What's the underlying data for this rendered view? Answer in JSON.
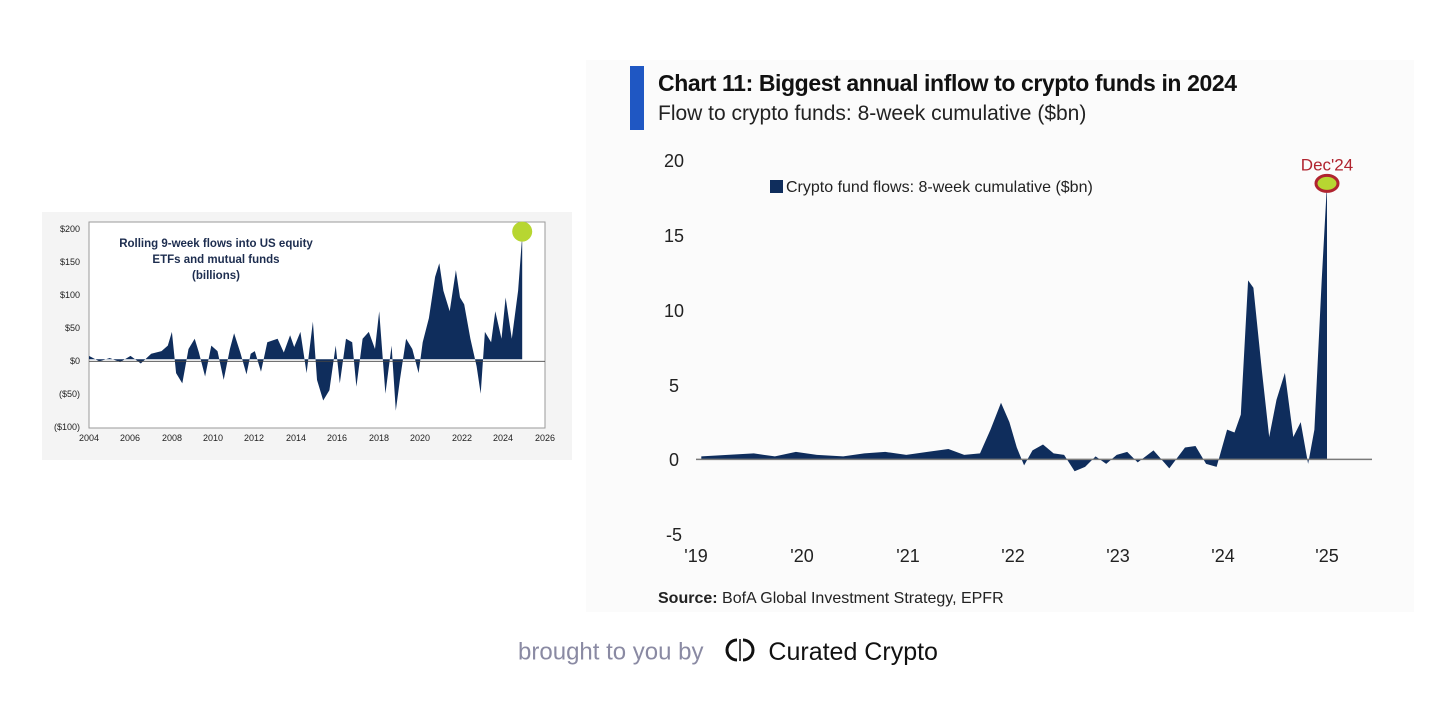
{
  "left_chart": {
    "title_lines": [
      "Rolling 9-week flows into US equity",
      "ETFs and mutual funds",
      "(billions)"
    ],
    "y_tick_labels": [
      "$200",
      "$150",
      "$100",
      "$50",
      "$0",
      "($50)",
      "($100)"
    ],
    "x_tick_labels": [
      "2004",
      "2006",
      "2008",
      "2010",
      "2012",
      "2014",
      "2016",
      "2018",
      "2020",
      "2022",
      "2024",
      "2026"
    ]
  },
  "right_chart": {
    "title": "Chart 11: Biggest annual inflow to crypto funds in 2024",
    "subtitle": "Flow to crypto funds: 8-week cumulative ($bn)",
    "legend_label": "Crypto fund flows: 8-week cumulative ($bn)",
    "annotation": "Dec'24",
    "y_tick_labels": [
      "20",
      "15",
      "10",
      "5",
      "0",
      "-5"
    ],
    "x_tick_labels": [
      "'19",
      "'20",
      "'21",
      "'22",
      "'23",
      "'24",
      "'25"
    ],
    "source_label": "Source:",
    "source_text": " BofA Global Investment Strategy, EPFR"
  },
  "footer": {
    "text": "brought to you by",
    "brand": "Curated Crypto"
  },
  "colors": {
    "bar_fill": "#0f2d5c",
    "accent": "#1f57c3",
    "highlight_green": "#b7d631",
    "annotation_red": "#b0242f",
    "axis_gray": "#6b6b6b"
  },
  "chart_data": [
    {
      "type": "area",
      "title": "Rolling 9-week flows into US equity ETFs and mutual funds (billions)",
      "xlim": [
        2004,
        2026
      ],
      "ylim": [
        -100,
        200
      ],
      "x": [
        2004.0,
        2004.5,
        2005.0,
        2005.5,
        2006.0,
        2006.5,
        2007.0,
        2007.5,
        2007.8,
        2008.0,
        2008.2,
        2008.5,
        2008.8,
        2009.1,
        2009.3,
        2009.6,
        2009.9,
        2010.2,
        2010.5,
        2010.8,
        2011.0,
        2011.3,
        2011.6,
        2011.8,
        2012.0,
        2012.3,
        2012.6,
        2012.9,
        2013.1,
        2013.4,
        2013.7,
        2013.9,
        2014.2,
        2014.5,
        2014.8,
        2015.0,
        2015.3,
        2015.6,
        2015.9,
        2016.1,
        2016.4,
        2016.7,
        2016.9,
        2017.2,
        2017.5,
        2017.8,
        2018.0,
        2018.3,
        2018.6,
        2018.8,
        2019.0,
        2019.3,
        2019.6,
        2019.9,
        2020.1,
        2020.4,
        2020.7,
        2020.9,
        2021.1,
        2021.4,
        2021.7,
        2021.9,
        2022.1,
        2022.4,
        2022.7,
        2022.9,
        2023.1,
        2023.4,
        2023.6,
        2023.9,
        2024.1,
        2024.4,
        2024.7,
        2024.9
      ],
      "values": [
        5,
        -3,
        2,
        -4,
        5,
        -6,
        8,
        12,
        20,
        40,
        -20,
        -35,
        15,
        30,
        10,
        -25,
        20,
        12,
        -30,
        15,
        38,
        10,
        -22,
        8,
        12,
        -18,
        25,
        28,
        30,
        10,
        35,
        18,
        40,
        -20,
        55,
        -30,
        -60,
        -45,
        20,
        -35,
        30,
        25,
        -40,
        30,
        40,
        15,
        70,
        -50,
        20,
        -75,
        -30,
        30,
        15,
        -20,
        25,
        60,
        120,
        140,
        100,
        70,
        130,
        90,
        80,
        30,
        -10,
        -50,
        40,
        25,
        70,
        30,
        90,
        30,
        100,
        180
      ]
    },
    {
      "type": "area",
      "title": "Chart 11: Biggest annual inflow to crypto funds in 2024",
      "subtitle": "Flow to crypto funds: 8-week cumulative ($bn)",
      "ylabel": "",
      "xlim": [
        2019.0,
        2025.4
      ],
      "ylim": [
        -5,
        20
      ],
      "series": [
        {
          "name": "Crypto fund flows: 8-week cumulative ($bn)",
          "x": [
            2019.05,
            2019.3,
            2019.55,
            2019.75,
            2019.95,
            2020.15,
            2020.4,
            2020.6,
            2020.8,
            2021.0,
            2021.2,
            2021.4,
            2021.55,
            2021.7,
            2021.8,
            2021.9,
            2021.98,
            2022.05,
            2022.12,
            2022.2,
            2022.3,
            2022.4,
            2022.5,
            2022.6,
            2022.7,
            2022.8,
            2022.9,
            2023.0,
            2023.1,
            2023.2,
            2023.35,
            2023.5,
            2023.65,
            2023.75,
            2023.85,
            2023.95,
            2024.05,
            2024.12,
            2024.18,
            2024.25,
            2024.3,
            2024.38,
            2024.45,
            2024.52,
            2024.6,
            2024.68,
            2024.75,
            2024.82,
            2024.88,
            2024.95,
            2025.0
          ],
          "values": [
            0.2,
            0.3,
            0.4,
            0.2,
            0.5,
            0.3,
            0.2,
            0.4,
            0.5,
            0.3,
            0.5,
            0.7,
            0.3,
            0.4,
            2.0,
            3.8,
            2.5,
            0.8,
            -0.4,
            0.6,
            1.0,
            0.4,
            0.3,
            -0.8,
            -0.5,
            0.2,
            -0.3,
            0.3,
            0.5,
            -0.2,
            0.6,
            -0.6,
            0.8,
            0.9,
            -0.3,
            -0.5,
            2.0,
            1.8,
            3.0,
            12.0,
            11.5,
            6.0,
            1.5,
            4.0,
            5.8,
            1.5,
            2.5,
            -0.3,
            2.0,
            12.0,
            18.5
          ]
        }
      ],
      "annotations": [
        "Dec'24"
      ]
    }
  ]
}
